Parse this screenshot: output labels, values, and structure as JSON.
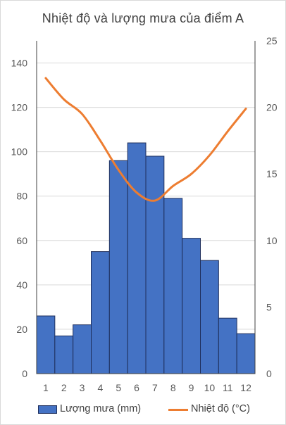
{
  "chart_data": {
    "type": "bar+line",
    "title": "Nhiệt độ và lượng mưa của điểm A",
    "categories": [
      "1",
      "2",
      "3",
      "4",
      "5",
      "6",
      "7",
      "8",
      "9",
      "10",
      "11",
      "12"
    ],
    "series": [
      {
        "name": "Lượng mưa (mm)",
        "type": "bar",
        "axis": "left",
        "color": "#4472c4",
        "values": [
          26,
          17,
          22,
          55,
          96,
          104,
          98,
          79,
          61,
          51,
          25,
          18
        ]
      },
      {
        "name": "Nhiệt độ (°C)",
        "type": "line",
        "axis": "right",
        "color": "#ed7d31",
        "values": [
          22.2,
          20.6,
          19.5,
          17.5,
          15.3,
          13.6,
          13.0,
          14.1,
          15.0,
          16.4,
          18.2,
          19.9
        ]
      }
    ],
    "y_left": {
      "min": 0,
      "max": 150,
      "ticks": [
        "0",
        "20",
        "40",
        "60",
        "80",
        "100",
        "120",
        "140"
      ]
    },
    "y_right": {
      "min": 0,
      "max": 25,
      "ticks": [
        "0",
        "5",
        "10",
        "15",
        "20",
        "25"
      ]
    },
    "grid": true,
    "legend_position": "bottom"
  }
}
